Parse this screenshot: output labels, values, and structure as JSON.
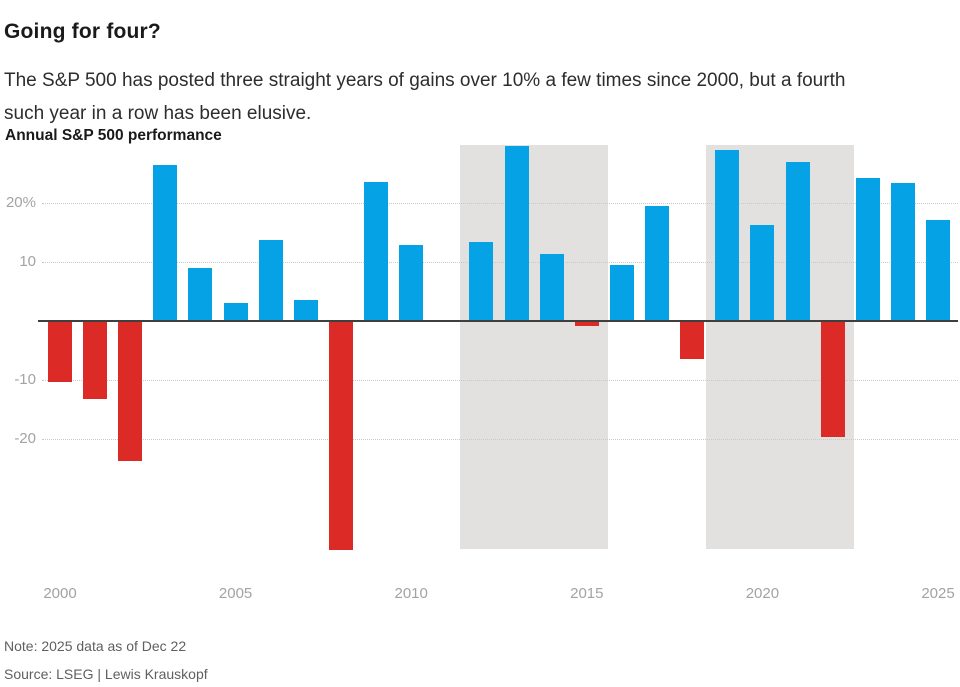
{
  "header": {
    "title": "Going for four?",
    "subtitle": "The S&P 500 has posted three straight years of gains over 10% a few times since 2000, but a fourth such year in a row has been elusive.",
    "series_label": "Annual S&P 500 performance"
  },
  "footer": {
    "note": "Note: 2025 data as of Dec 22",
    "source": "Source: LSEG | Lewis Krauskopf"
  },
  "colors": {
    "positive_bar": "#05a2e6",
    "negative_bar": "#dc2b26",
    "highlight_band": "#e2e1e0",
    "gridline": "#c9c9c9",
    "zero_axis": "#3f3f3f",
    "tick_label": "#a3a3a3"
  },
  "chart_data": {
    "type": "bar",
    "title": "Annual S&P 500 performance",
    "unit": "%",
    "categories": [
      2000,
      2001,
      2002,
      2003,
      2004,
      2005,
      2006,
      2007,
      2008,
      2009,
      2010,
      2011,
      2012,
      2013,
      2014,
      2015,
      2016,
      2017,
      2018,
      2019,
      2020,
      2021,
      2022,
      2023,
      2024,
      2025
    ],
    "values": [
      -10.1,
      -13.0,
      -23.4,
      26.4,
      9.0,
      3.0,
      13.6,
      3.5,
      -38.5,
      23.5,
      12.8,
      0.0,
      13.4,
      29.6,
      11.4,
      -0.7,
      9.5,
      19.4,
      -6.2,
      28.9,
      16.3,
      26.9,
      -19.4,
      24.2,
      23.3,
      17.0
    ],
    "color_rule": "positive years blue, negative years red",
    "yticks": [
      {
        "value": 20,
        "label": "20%"
      },
      {
        "value": 10,
        "label": "10"
      },
      {
        "value": -10,
        "label": "-10"
      },
      {
        "value": -20,
        "label": "-20"
      }
    ],
    "xticks": [
      "2000",
      "2005",
      "2010",
      "2015",
      "2020",
      "2025"
    ],
    "ylim": [
      -38.5,
      29.7
    ],
    "highlight_bands": [
      {
        "from": 2012,
        "to": 2015
      },
      {
        "from": 2019,
        "to": 2022
      }
    ],
    "grid": true,
    "legend": false,
    "xlabel": "",
    "ylabel": ""
  }
}
